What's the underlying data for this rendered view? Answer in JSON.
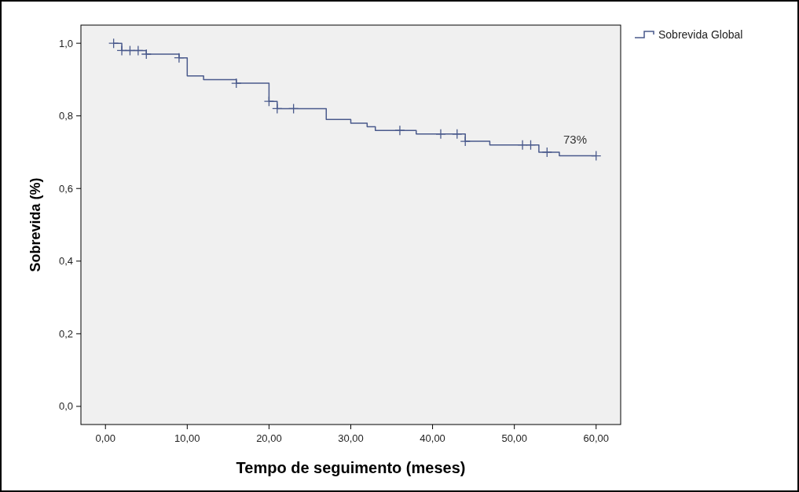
{
  "chart_data": {
    "type": "step",
    "xlabel": "Tempo de seguimento (meses)",
    "ylabel": "Sobrevida (%)",
    "xlim": [
      -3,
      63
    ],
    "ylim": [
      -0.05,
      1.05
    ],
    "xticks": [
      {
        "value": 0,
        "label": "0,00"
      },
      {
        "value": 10,
        "label": "10,00"
      },
      {
        "value": 20,
        "label": "20,00"
      },
      {
        "value": 30,
        "label": "30,00"
      },
      {
        "value": 40,
        "label": "40,00"
      },
      {
        "value": 50,
        "label": "50,00"
      },
      {
        "value": 60,
        "label": "60,00"
      }
    ],
    "yticks": [
      {
        "value": 0,
        "label": "0,0"
      },
      {
        "value": 0.2,
        "label": "0,2"
      },
      {
        "value": 0.4,
        "label": "0,4"
      },
      {
        "value": 0.6,
        "label": "0,6"
      },
      {
        "value": 0.8,
        "label": "0,8"
      },
      {
        "value": 1,
        "label": "1,0"
      }
    ],
    "series": [
      {
        "name": "Sobrevida Global",
        "color": "#4a5a8c",
        "x": [
          1,
          2,
          5,
          9,
          10,
          12,
          16,
          20,
          21,
          27,
          30,
          32,
          33,
          38,
          44,
          47,
          53,
          55.5,
          60
        ],
        "values": [
          1.0,
          0.98,
          0.97,
          0.96,
          0.91,
          0.9,
          0.89,
          0.84,
          0.82,
          0.79,
          0.78,
          0.77,
          0.76,
          0.75,
          0.73,
          0.72,
          0.7,
          0.69,
          0.69
        ]
      },
      {
        "type": "scatter",
        "marker": "cross",
        "color": "#4a5a8c",
        "x": [
          1,
          2,
          3,
          4,
          5,
          9,
          16,
          20,
          21,
          23,
          36,
          41,
          43,
          44,
          51,
          52,
          54,
          60
        ],
        "values": [
          1.0,
          0.98,
          0.98,
          0.98,
          0.97,
          0.96,
          0.89,
          0.84,
          0.82,
          0.82,
          0.76,
          0.75,
          0.75,
          0.73,
          0.72,
          0.72,
          0.7,
          0.69
        ]
      }
    ],
    "annotations": [
      "73%"
    ],
    "legend": "top right",
    "grid": false
  }
}
